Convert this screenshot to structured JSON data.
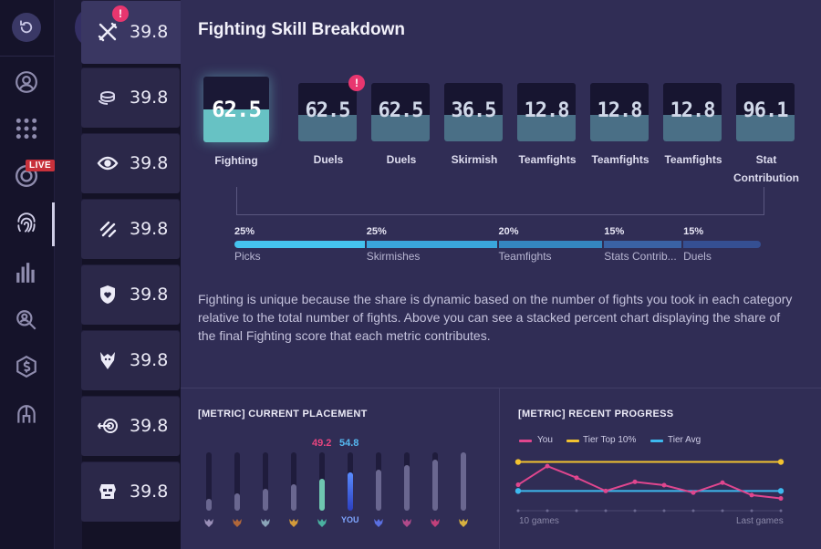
{
  "nav": {
    "live_badge": "LIVE",
    "items": [
      "refresh-icon",
      "profile-icon",
      "apps-icon",
      "live-target-icon",
      "fingerprint-icon",
      "stats-icon",
      "search-user-icon",
      "currency-icon",
      "helmet-icon"
    ]
  },
  "skills": [
    {
      "icon": "crossed-swords-icon",
      "value": "39.8",
      "alert": "!"
    },
    {
      "icon": "coins-icon",
      "value": "39.8"
    },
    {
      "icon": "eye-icon",
      "value": "39.8"
    },
    {
      "icon": "claw-marks-icon",
      "value": "39.8"
    },
    {
      "icon": "shield-heart-icon",
      "value": "39.8"
    },
    {
      "icon": "dragon-crest-icon",
      "value": "39.8"
    },
    {
      "icon": "target-arrow-icon",
      "value": "39.8"
    },
    {
      "icon": "robot-mask-icon",
      "value": "39.8"
    }
  ],
  "panel": {
    "title": "Fighting Skill Breakdown",
    "metrics": [
      {
        "value": "62.5",
        "label": "Fighting",
        "fill": 0.5,
        "selected": true
      },
      {
        "value": "62.5",
        "label": "Duels",
        "fill": 0.45,
        "alert": "!"
      },
      {
        "value": "62.5",
        "label": "Duels",
        "fill": 0.45
      },
      {
        "value": "36.5",
        "label": "Skirmish",
        "fill": 0.45
      },
      {
        "value": "12.8",
        "label": "Teamfights",
        "fill": 0.45
      },
      {
        "value": "12.8",
        "label": "Teamfights",
        "fill": 0.45
      },
      {
        "value": "12.8",
        "label": "Teamfights",
        "fill": 0.45
      },
      {
        "value": "96.1",
        "label": "Stat Contribution",
        "fill": 0.45
      }
    ],
    "share": [
      {
        "pct": "25%",
        "name": "Picks",
        "share": 25,
        "color": "#45c3ee"
      },
      {
        "pct": "25%",
        "name": "Skirmishes",
        "share": 25,
        "color": "#3aa6dc"
      },
      {
        "pct": "20%",
        "name": "Teamfights",
        "share": 20,
        "color": "#3486bf"
      },
      {
        "pct": "15%",
        "name": "Stats Contrib...",
        "share": 15,
        "color": "#3a62a4"
      },
      {
        "pct": "15%",
        "name": "Duels",
        "share": 15,
        "color": "#354f92"
      }
    ],
    "description": "Fighting is unique because the share is dynamic based on the number of fights you took in each category relative to the total number of fights. Above you can see a stacked percent chart displaying the share of the final Fighting score that each metric contributes."
  },
  "placement": {
    "title": "[METRIC] CURRENT PLACEMENT",
    "highlight_value": "49.2",
    "you_value": "54.8",
    "you_label": "YOU",
    "bars": [
      {
        "level": 0.2,
        "color": "#6a6790",
        "rank": "#9a8fb8"
      },
      {
        "level": 0.3,
        "color": "#6a6790",
        "rank": "#b0673a"
      },
      {
        "level": 0.38,
        "color": "#6a6790",
        "rank": "#8aa4b8"
      },
      {
        "level": 0.45,
        "color": "#6a6790",
        "rank": "#d29a3a"
      },
      {
        "level": 0.55,
        "color": "#6fc6b0",
        "rank": "#4ab0a0"
      },
      {
        "level": 0.65,
        "color": "#3f63e0",
        "rank": "#3b6be6",
        "you": true
      },
      {
        "level": 0.7,
        "color": "#6a6790",
        "rank": "#5a6fe0"
      },
      {
        "level": 0.78,
        "color": "#6a6790",
        "rank": "#b04a8a"
      },
      {
        "level": 0.88,
        "color": "#6a6790",
        "rank": "#c0407a"
      },
      {
        "level": 1.0,
        "color": "#6a6790",
        "rank": "#d6b040"
      }
    ]
  },
  "progress": {
    "title": "[METRIC] RECENT PROGRESS",
    "legend": [
      {
        "name": "You",
        "color": "#e0468e"
      },
      {
        "name": "Tier Top 10%",
        "color": "#f2c230"
      },
      {
        "name": "Tier Avg",
        "color": "#3db9ef"
      }
    ],
    "x_start_label": "10 games",
    "x_end_label": "Last games"
  },
  "chart_data": {
    "type": "line",
    "x": [
      1,
      2,
      3,
      4,
      5,
      6,
      7,
      8,
      9,
      10
    ],
    "series": [
      {
        "name": "You",
        "values": [
          0.45,
          0.9,
          0.62,
          0.3,
          0.52,
          0.44,
          0.26,
          0.5,
          0.2,
          0.12
        ]
      },
      {
        "name": "Tier Top 10%",
        "values": [
          1,
          1,
          1,
          1,
          1,
          1,
          1,
          1,
          1,
          1
        ]
      },
      {
        "name": "Tier Avg",
        "values": [
          0.3,
          0.3,
          0.3,
          0.3,
          0.3,
          0.3,
          0.3,
          0.3,
          0.3,
          0.3
        ]
      }
    ],
    "xlabel": "",
    "ylabel": "",
    "ylim": [
      0,
      1.1
    ]
  }
}
